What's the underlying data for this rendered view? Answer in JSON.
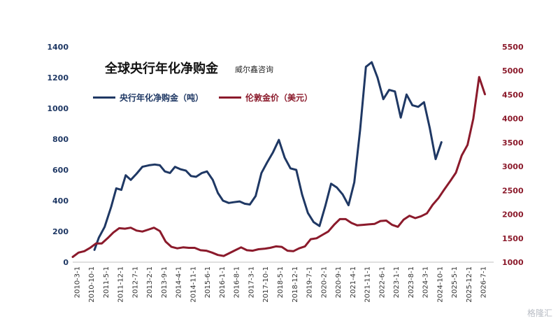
{
  "chart_data": {
    "type": "line",
    "title": "全球央行年化净购金",
    "source": "威尔鑫咨询",
    "watermark": "格隆汇",
    "categories": [
      "2010-3-1",
      "2010-10-1",
      "2011-5-1",
      "2011-12-1",
      "2012-7-1",
      "2013-2-1",
      "2013-9-1",
      "2014-4-1",
      "2014-11-1",
      "2015-6-1",
      "2016-1-1",
      "2016-8-1",
      "2017-3-1",
      "2017-10-1",
      "2018-5-1",
      "2018-12-1",
      "2019-7-1",
      "2020-2-1",
      "2020-9-1",
      "2021-4-1",
      "2021-11-1",
      "2022-6-1",
      "2023-1-1",
      "2023-8-1",
      "2024-3-1",
      "2024-10-1",
      "2025-5-1",
      "2025-12-1",
      "2026-7-1"
    ],
    "yaxis_left": {
      "min": 0,
      "max": 1400,
      "ticks": [
        0,
        200,
        400,
        600,
        800,
        1000,
        1200,
        1400
      ]
    },
    "yaxis_right": {
      "min": 1000,
      "max": 5500,
      "ticks": [
        1000,
        1500,
        2000,
        2500,
        3000,
        3500,
        4000,
        4500,
        5000,
        5500
      ]
    },
    "series": [
      {
        "name": "央行年化净购金（吨）",
        "color": "#1f3864",
        "axis": "left",
        "points": [
          [
            3.0,
            80
          ],
          [
            3.6,
            160
          ],
          [
            4.4,
            230
          ],
          [
            5.3,
            360
          ],
          [
            6.0,
            480
          ],
          [
            6.7,
            470
          ],
          [
            7.3,
            565
          ],
          [
            8.0,
            535
          ],
          [
            8.8,
            575
          ],
          [
            9.6,
            620
          ],
          [
            10.5,
            630
          ],
          [
            11.3,
            635
          ],
          [
            12.0,
            630
          ],
          [
            12.7,
            590
          ],
          [
            13.4,
            580
          ],
          [
            14.1,
            620
          ],
          [
            14.8,
            605
          ],
          [
            15.6,
            595
          ],
          [
            16.3,
            560
          ],
          [
            17.0,
            555
          ],
          [
            17.8,
            580
          ],
          [
            18.5,
            590
          ],
          [
            19.3,
            535
          ],
          [
            20.0,
            450
          ],
          [
            20.7,
            400
          ],
          [
            21.5,
            385
          ],
          [
            22.2,
            390
          ],
          [
            23.0,
            395
          ],
          [
            23.7,
            380
          ],
          [
            24.4,
            375
          ],
          [
            25.2,
            430
          ],
          [
            26.0,
            580
          ],
          [
            26.8,
            650
          ],
          [
            27.6,
            715
          ],
          [
            28.4,
            795
          ],
          [
            29.2,
            680
          ],
          [
            30.0,
            610
          ],
          [
            30.8,
            600
          ],
          [
            31.6,
            440
          ],
          [
            32.4,
            320
          ],
          [
            33.2,
            260
          ],
          [
            34.0,
            235
          ],
          [
            34.8,
            365
          ],
          [
            35.6,
            510
          ],
          [
            36.4,
            485
          ],
          [
            37.2,
            440
          ],
          [
            38.0,
            370
          ],
          [
            38.8,
            520
          ],
          [
            39.6,
            860
          ],
          [
            40.4,
            1270
          ],
          [
            41.2,
            1300
          ],
          [
            42.0,
            1200
          ],
          [
            42.8,
            1060
          ],
          [
            43.6,
            1120
          ],
          [
            44.4,
            1110
          ],
          [
            45.2,
            940
          ],
          [
            46.0,
            1090
          ],
          [
            46.8,
            1020
          ],
          [
            47.6,
            1010
          ],
          [
            48.4,
            1040
          ],
          [
            49.2,
            870
          ],
          [
            50.0,
            670
          ],
          [
            50.8,
            780
          ]
        ]
      },
      {
        "name": "伦敦金价（美元）",
        "color": "#8b1a2b",
        "axis": "right",
        "points": [
          [
            0.0,
            1110
          ],
          [
            0.8,
            1200
          ],
          [
            1.6,
            1230
          ],
          [
            2.4,
            1300
          ],
          [
            3.2,
            1390
          ],
          [
            4.0,
            1390
          ],
          [
            4.8,
            1500
          ],
          [
            5.6,
            1620
          ],
          [
            6.4,
            1710
          ],
          [
            7.2,
            1700
          ],
          [
            8.0,
            1720
          ],
          [
            8.8,
            1660
          ],
          [
            9.6,
            1640
          ],
          [
            10.4,
            1680
          ],
          [
            11.2,
            1720
          ],
          [
            12.0,
            1650
          ],
          [
            12.8,
            1430
          ],
          [
            13.6,
            1320
          ],
          [
            14.4,
            1290
          ],
          [
            15.2,
            1310
          ],
          [
            16.0,
            1300
          ],
          [
            16.8,
            1300
          ],
          [
            17.6,
            1250
          ],
          [
            18.4,
            1240
          ],
          [
            19.2,
            1200
          ],
          [
            20.0,
            1150
          ],
          [
            20.8,
            1130
          ],
          [
            21.6,
            1190
          ],
          [
            22.4,
            1250
          ],
          [
            23.2,
            1310
          ],
          [
            24.0,
            1250
          ],
          [
            24.8,
            1240
          ],
          [
            25.6,
            1270
          ],
          [
            26.4,
            1280
          ],
          [
            27.2,
            1300
          ],
          [
            28.0,
            1330
          ],
          [
            28.8,
            1320
          ],
          [
            29.6,
            1240
          ],
          [
            30.4,
            1230
          ],
          [
            31.2,
            1290
          ],
          [
            32.0,
            1330
          ],
          [
            32.8,
            1480
          ],
          [
            33.6,
            1500
          ],
          [
            34.4,
            1570
          ],
          [
            35.2,
            1640
          ],
          [
            36.0,
            1780
          ],
          [
            36.8,
            1900
          ],
          [
            37.6,
            1900
          ],
          [
            38.4,
            1820
          ],
          [
            39.2,
            1770
          ],
          [
            40.0,
            1780
          ],
          [
            40.8,
            1790
          ],
          [
            41.6,
            1800
          ],
          [
            42.4,
            1860
          ],
          [
            43.2,
            1870
          ],
          [
            44.0,
            1780
          ],
          [
            44.8,
            1740
          ],
          [
            45.6,
            1890
          ],
          [
            46.4,
            1970
          ],
          [
            47.2,
            1920
          ],
          [
            48.0,
            1960
          ],
          [
            48.8,
            2020
          ],
          [
            49.6,
            2200
          ],
          [
            50.4,
            2340
          ],
          [
            51.2,
            2520
          ],
          [
            52.0,
            2690
          ],
          [
            52.8,
            2870
          ],
          [
            53.6,
            3230
          ],
          [
            54.4,
            3450
          ],
          [
            55.2,
            4000
          ],
          [
            56.0,
            4870
          ],
          [
            56.8,
            4510
          ]
        ]
      }
    ],
    "x_domain": [
      0,
      58
    ],
    "grid": false,
    "legend_position": "top-left"
  }
}
